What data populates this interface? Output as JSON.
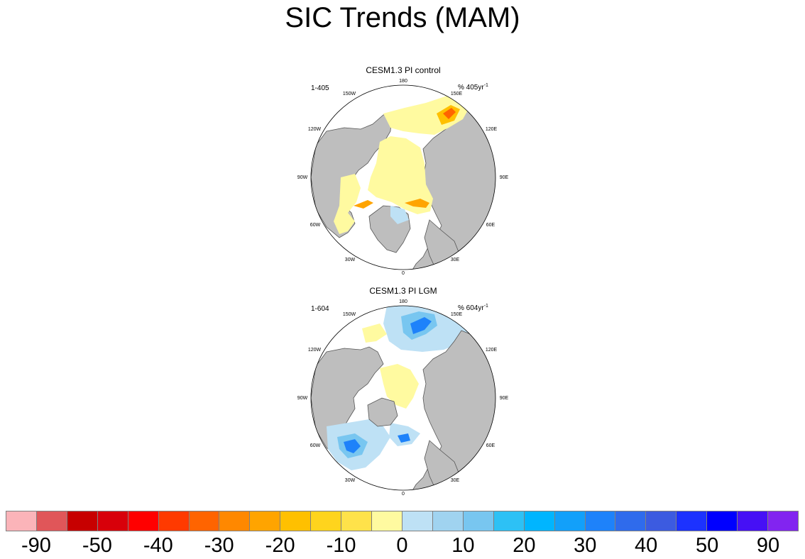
{
  "title": "SIC Trends (MAM)",
  "panels": [
    {
      "title": "CESM1.3 PI control",
      "left_label": "1-405",
      "right_label": "% 405yr",
      "right_label_sup": "-1"
    },
    {
      "title": "CESM1.3 PI LGM",
      "left_label": "1-604",
      "right_label": "% 604yr",
      "right_label_sup": "-1"
    }
  ],
  "longitude_labels": [
    "180",
    "150E",
    "120E",
    "90E",
    "60E",
    "30E",
    "0",
    "30W",
    "60W",
    "90W",
    "120W",
    "150W"
  ],
  "colorbar": {
    "colors": [
      "#fbb4b9",
      "#e05659",
      "#c70000",
      "#d8000a",
      "#ff0000",
      "#ff3a00",
      "#ff6400",
      "#ff8800",
      "#ffa400",
      "#ffc000",
      "#ffd41d",
      "#ffe24a",
      "#fffaa0",
      "#bee1f5",
      "#a0d3f0",
      "#78c6f0",
      "#2dc1f5",
      "#00b5ff",
      "#12a0fa",
      "#1e82fa",
      "#2f6bec",
      "#3c5be0",
      "#1c32ff",
      "#0000ff",
      "#4610f5",
      "#8224f0"
    ],
    "labels": [
      "-90",
      "-50",
      "-40",
      "-30",
      "-20",
      "-10",
      "0",
      "10",
      "20",
      "30",
      "40",
      "50",
      "90"
    ]
  },
  "legend_colors": {
    "land": "#bebebe",
    "open_ocean": "#ffffff",
    "coastline": "#555555"
  }
}
